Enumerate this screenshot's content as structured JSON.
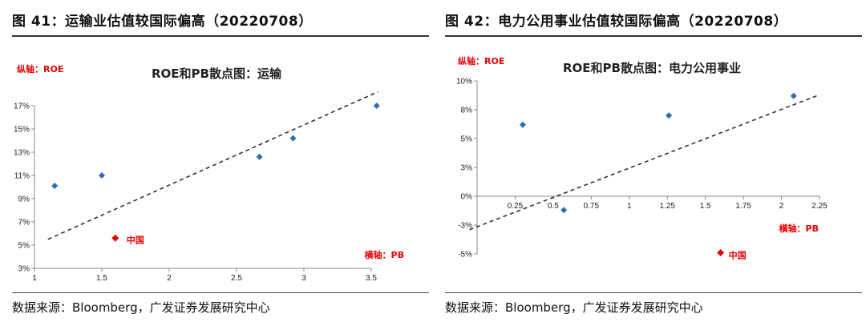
{
  "panels": [
    {
      "figure_title": "图 41：运输业估值较国际偏高（20220708）",
      "source": "数据来源：Bloomberg，广发证券发展研究中心"
    },
    {
      "figure_title": "图 42：电力公用事业估值较国际偏高（20220708）",
      "source": "数据来源：Bloomberg，广发证券发展研究中心"
    }
  ],
  "chart_data": [
    {
      "type": "scatter",
      "title": "ROE和PB散点图：运输",
      "ylabel": "纵轴：ROE",
      "xlabel": "横轴：PB",
      "xlim": [
        1,
        3.5
      ],
      "ylim": [
        3,
        17
      ],
      "x_ticks": [
        1,
        1.5,
        2,
        2.5,
        3,
        3.5
      ],
      "x_tick_labels": [
        "1",
        "1.5",
        "2",
        "2.5",
        "3",
        "3.5"
      ],
      "y_ticks": [
        3,
        5,
        7,
        9,
        11,
        13,
        15,
        17
      ],
      "y_tick_labels": [
        "3%",
        "5%",
        "7%",
        "9%",
        "11%",
        "13%",
        "15%",
        "17%"
      ],
      "series": [
        {
          "color": "#2e6db4",
          "points": [
            [
              1.15,
              10.1
            ],
            [
              1.5,
              11.0
            ],
            [
              2.67,
              12.6
            ],
            [
              2.92,
              14.2
            ],
            [
              3.54,
              17.0
            ]
          ]
        }
      ],
      "highlight": {
        "label": "中国",
        "x": 1.6,
        "y": 5.6,
        "color": "#e60000"
      },
      "trendline": {
        "style": "dashed",
        "from": [
          1.1,
          5.5
        ],
        "to": [
          3.55,
          18.2
        ]
      },
      "grid": false
    },
    {
      "type": "scatter",
      "title": "ROE和PB散点图：电力公用事业",
      "ylabel": "纵轴：ROE",
      "xlabel": "横轴：PB",
      "xlim": [
        0,
        2.25
      ],
      "ylim": [
        -5,
        10
      ],
      "x_ticks": [
        0.25,
        0.5,
        0.75,
        1,
        1.25,
        1.5,
        1.75,
        2,
        2.25
      ],
      "x_tick_labels": [
        "0.25",
        "0.5",
        "0.75",
        "1",
        "1.25",
        "1.5",
        "1.75",
        "2",
        "2.25"
      ],
      "y_ticks": [
        -5,
        -2.5,
        0,
        2.5,
        5,
        7.5,
        10
      ],
      "y_tick_labels": [
        "-5%",
        "-3%",
        "0%",
        "3%",
        "5%",
        "8%",
        "10%"
      ],
      "series": [
        {
          "color": "#2e6db4",
          "points": [
            [
              0.3,
              6.2
            ],
            [
              0.57,
              -1.2
            ],
            [
              1.26,
              7.0
            ],
            [
              2.08,
              8.7
            ]
          ]
        }
      ],
      "highlight": {
        "label": "中国",
        "x": 1.6,
        "y": -4.9,
        "color": "#e60000"
      },
      "trendline": {
        "style": "dashed",
        "from": [
          -0.05,
          -2.9
        ],
        "to": [
          2.25,
          8.8
        ]
      },
      "grid": false
    }
  ]
}
